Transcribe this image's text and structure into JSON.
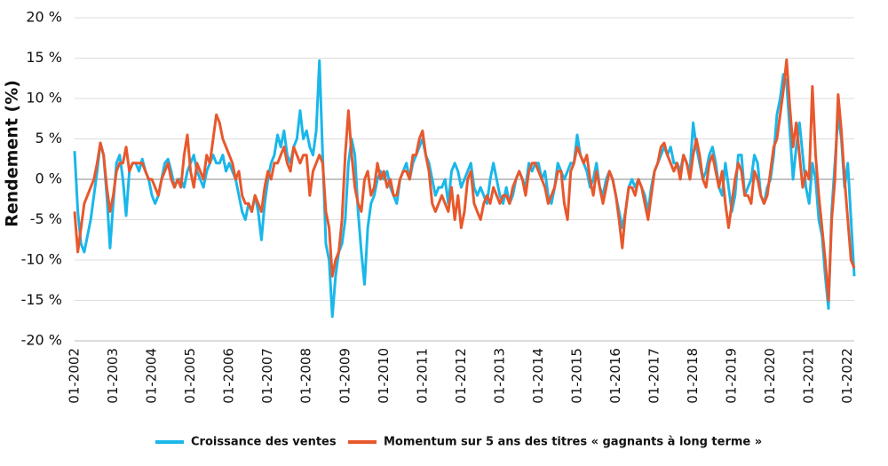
{
  "chart_data": {
    "type": "line",
    "y_label": "Rendement (%)",
    "x": [
      "01-2002",
      "02-2002",
      "03-2002",
      "04-2002",
      "05-2002",
      "06-2002",
      "07-2002",
      "08-2002",
      "09-2002",
      "10-2002",
      "11-2002",
      "12-2002",
      "01-2003",
      "02-2003",
      "03-2003",
      "04-2003",
      "05-2003",
      "06-2003",
      "07-2003",
      "08-2003",
      "09-2003",
      "10-2003",
      "11-2003",
      "12-2003",
      "01-2004",
      "02-2004",
      "03-2004",
      "04-2004",
      "05-2004",
      "06-2004",
      "07-2004",
      "08-2004",
      "09-2004",
      "10-2004",
      "11-2004",
      "12-2004",
      "01-2005",
      "02-2005",
      "03-2005",
      "04-2005",
      "05-2005",
      "06-2005",
      "07-2005",
      "08-2005",
      "09-2005",
      "10-2005",
      "11-2005",
      "12-2005",
      "01-2006",
      "02-2006",
      "03-2006",
      "04-2006",
      "05-2006",
      "06-2006",
      "07-2006",
      "08-2006",
      "09-2006",
      "10-2006",
      "11-2006",
      "12-2006",
      "01-2007",
      "02-2007",
      "03-2007",
      "04-2007",
      "05-2007",
      "06-2007",
      "07-2007",
      "08-2007",
      "09-2007",
      "10-2007",
      "11-2007",
      "12-2007",
      "01-2008",
      "02-2008",
      "03-2008",
      "04-2008",
      "05-2008",
      "06-2008",
      "07-2008",
      "08-2008",
      "09-2008",
      "10-2008",
      "11-2008",
      "12-2008",
      "01-2009",
      "02-2009",
      "03-2009",
      "04-2009",
      "05-2009",
      "06-2009",
      "07-2009",
      "08-2009",
      "09-2009",
      "10-2009",
      "11-2009",
      "12-2009",
      "01-2010",
      "02-2010",
      "03-2010",
      "04-2010",
      "05-2010",
      "06-2010",
      "07-2010",
      "08-2010",
      "09-2010",
      "10-2010",
      "11-2010",
      "12-2010",
      "01-2011",
      "02-2011",
      "03-2011",
      "04-2011",
      "05-2011",
      "06-2011",
      "07-2011",
      "08-2011",
      "09-2011",
      "10-2011",
      "11-2011",
      "12-2011",
      "01-2012",
      "02-2012",
      "03-2012",
      "04-2012",
      "05-2012",
      "06-2012",
      "07-2012",
      "08-2012",
      "09-2012",
      "10-2012",
      "11-2012",
      "12-2012",
      "01-2013",
      "02-2013",
      "03-2013",
      "04-2013",
      "05-2013",
      "06-2013",
      "07-2013",
      "08-2013",
      "09-2013",
      "10-2013",
      "11-2013",
      "12-2013",
      "01-2014",
      "02-2014",
      "03-2014",
      "04-2014",
      "05-2014",
      "06-2014",
      "07-2014",
      "08-2014",
      "09-2014",
      "10-2014",
      "11-2014",
      "12-2014",
      "01-2015",
      "02-2015",
      "03-2015",
      "04-2015",
      "05-2015",
      "06-2015",
      "07-2015",
      "08-2015",
      "09-2015",
      "10-2015",
      "11-2015",
      "12-2015",
      "01-2016",
      "02-2016",
      "03-2016",
      "04-2016",
      "05-2016",
      "06-2016",
      "07-2016",
      "08-2016",
      "09-2016",
      "10-2016",
      "11-2016",
      "12-2016",
      "01-2017",
      "02-2017",
      "03-2017",
      "04-2017",
      "05-2017",
      "06-2017",
      "07-2017",
      "08-2017",
      "09-2017",
      "10-2017",
      "11-2017",
      "12-2017",
      "01-2018",
      "02-2018",
      "03-2018",
      "04-2018",
      "05-2018",
      "06-2018",
      "07-2018",
      "08-2018",
      "09-2018",
      "10-2018",
      "11-2018",
      "12-2018",
      "01-2019",
      "02-2019",
      "03-2019",
      "04-2019",
      "05-2019",
      "06-2019",
      "07-2019",
      "08-2019",
      "09-2019",
      "10-2019",
      "11-2019",
      "12-2019",
      "01-2020",
      "02-2020",
      "03-2020",
      "04-2020",
      "05-2020",
      "06-2020",
      "07-2020",
      "08-2020",
      "09-2020",
      "10-2020",
      "11-2020",
      "12-2020",
      "01-2021",
      "02-2021",
      "03-2021",
      "04-2021",
      "05-2021",
      "06-2021",
      "07-2021",
      "08-2021",
      "09-2021",
      "10-2021",
      "11-2021",
      "12-2021",
      "01-2022",
      "02-2022",
      "03-2022"
    ],
    "xticks": [
      "01-2002",
      "01-2003",
      "01-2004",
      "01-2005",
      "01-2006",
      "01-2007",
      "01-2008",
      "01-2009",
      "01-2010",
      "01-2011",
      "01-2012",
      "01-2013",
      "01-2014",
      "01-2015",
      "01-2016",
      "01-2017",
      "01-2018",
      "01-2019",
      "01-2020",
      "01-2021",
      "01-2022"
    ],
    "series": [
      {
        "name": "Croissance des ventes",
        "color": "#1ab7ea",
        "values": [
          3.5,
          -4,
          -8,
          -9,
          -7,
          -5,
          -2,
          1,
          4.5,
          3,
          -2,
          -8.5,
          -3,
          2,
          3,
          0,
          -4.5,
          1,
          2,
          2,
          1,
          2.5,
          1,
          0,
          -2,
          -3,
          -2,
          0,
          2,
          2.5,
          1,
          -1,
          0,
          0,
          -1,
          1,
          2,
          3,
          1,
          0,
          -1,
          1,
          2,
          3,
          2,
          2,
          3,
          1,
          2,
          1,
          0,
          -2,
          -4,
          -5,
          -3,
          -4,
          -2,
          -4,
          -7.5,
          -3,
          0,
          2,
          3,
          5.5,
          4,
          6,
          3,
          2,
          4,
          5,
          8.5,
          5,
          6,
          4,
          3,
          6,
          14.7,
          3,
          -8,
          -10,
          -17,
          -12,
          -9,
          -8,
          -5,
          2,
          5,
          3,
          -4,
          -9,
          -13,
          -6,
          -3,
          -2,
          0,
          1,
          0,
          1,
          -1,
          -2,
          -3,
          0,
          1,
          2,
          0,
          2,
          3,
          4,
          5,
          3,
          2,
          0,
          -2,
          -1,
          -1,
          0,
          -3,
          1,
          2,
          1,
          -1,
          0,
          1,
          2,
          -1,
          -2,
          -1,
          -2,
          -3,
          0,
          2,
          0,
          -2,
          -3,
          -1,
          -3,
          -2,
          0,
          1,
          0,
          -1,
          2,
          1,
          2,
          2,
          0,
          1,
          -2,
          -3,
          -1,
          2,
          1,
          0,
          1,
          2,
          2,
          5.5,
          3,
          2,
          1,
          -1,
          0,
          2,
          -1,
          -2,
          0,
          1,
          0,
          -2,
          -4,
          -6,
          -4,
          -1,
          0,
          -1,
          0,
          -1,
          -2,
          -4,
          -1,
          1,
          2,
          3,
          4,
          3,
          4,
          2,
          2,
          1,
          3,
          2,
          1,
          7,
          4,
          2,
          0,
          1,
          3,
          4,
          2,
          -1,
          -2,
          2,
          -1,
          -4,
          -2,
          3,
          3,
          -2,
          -1,
          0,
          3,
          2,
          -2,
          -3,
          -1,
          0,
          3,
          8,
          10,
          13,
          12,
          6,
          0,
          4,
          7,
          3,
          -1,
          -3,
          2,
          0,
          -5,
          -7,
          -12,
          -16,
          -4,
          2,
          8,
          5,
          -1,
          2,
          -5,
          -12
        ]
      },
      {
        "name": "Momentum sur 5 ans des titres « gagnants à long terme »",
        "color": "#e8582c",
        "values": [
          -4,
          -9,
          -6,
          -3,
          -2,
          -1,
          0,
          2,
          4.5,
          3,
          -1,
          -4,
          -2,
          1,
          2,
          2,
          4,
          1,
          2,
          2,
          2,
          2,
          1,
          0,
          0,
          -1,
          -2,
          0,
          1,
          2,
          0,
          -1,
          0,
          -1,
          3,
          5.5,
          1,
          -1,
          2,
          1,
          0,
          3,
          2,
          5,
          8,
          7,
          5,
          4,
          3,
          2,
          0,
          1,
          -2,
          -3,
          -3,
          -4,
          -2,
          -3,
          -4,
          -1,
          1,
          0,
          2,
          2,
          3,
          4,
          2,
          1,
          4,
          3,
          2,
          3,
          3,
          -2,
          1,
          2,
          3,
          2,
          -4,
          -6,
          -12,
          -10,
          -9,
          -5,
          3,
          8.5,
          3,
          -1,
          -3,
          -4,
          0,
          1,
          -2,
          -1,
          2,
          0,
          1,
          -1,
          0,
          -2,
          -2,
          0,
          1,
          1,
          0,
          3,
          3,
          5,
          6,
          3,
          1,
          -3,
          -4,
          -3,
          -2,
          -3,
          -4,
          -1,
          -5,
          -2,
          -6,
          -4,
          0,
          1,
          -3,
          -4,
          -5,
          -3,
          -2,
          -3,
          -1,
          -2,
          -3,
          -2,
          -2,
          -3,
          -1,
          0,
          1,
          0,
          -2,
          1,
          2,
          2,
          1,
          0,
          -1,
          -3,
          -2,
          -1,
          1,
          1,
          -3,
          -5,
          1,
          2,
          4,
          3,
          2,
          3,
          0,
          -2,
          1,
          -1,
          -3,
          -1,
          1,
          0,
          -2,
          -5,
          -8.5,
          -4,
          -1,
          -1,
          -2,
          0,
          -1,
          -3,
          -5,
          -2,
          1,
          2,
          4,
          4.5,
          3,
          2,
          1,
          2,
          0,
          3,
          2,
          0,
          3,
          5,
          3,
          0,
          -1,
          2,
          3,
          1,
          -1,
          1,
          -3,
          -6,
          -3,
          0,
          2,
          1,
          -2,
          -2,
          -3,
          1,
          0,
          -2,
          -3,
          -2,
          1,
          4,
          5,
          8,
          11,
          14.8,
          9,
          4,
          7,
          3,
          -1,
          1,
          0,
          11.5,
          3,
          -2,
          -6,
          -10,
          -15,
          -5,
          0,
          10.5,
          6,
          0,
          -5,
          -10,
          -11
        ]
      }
    ],
    "ylim": [
      -20,
      20
    ],
    "yticks": [
      {
        "value": -20,
        "label": "-20 %"
      },
      {
        "value": -15,
        "label": "-15 %"
      },
      {
        "value": -10,
        "label": "-10 %"
      },
      {
        "value": -5,
        "label": "-5 %"
      },
      {
        "value": 0,
        "label": "0 %"
      },
      {
        "value": 5,
        "label": "5 %"
      },
      {
        "value": 10,
        "label": "10 %"
      },
      {
        "value": 15,
        "label": "15 %"
      },
      {
        "value": 20,
        "label": "20 %"
      }
    ],
    "grid": true,
    "legend": "bottom"
  }
}
